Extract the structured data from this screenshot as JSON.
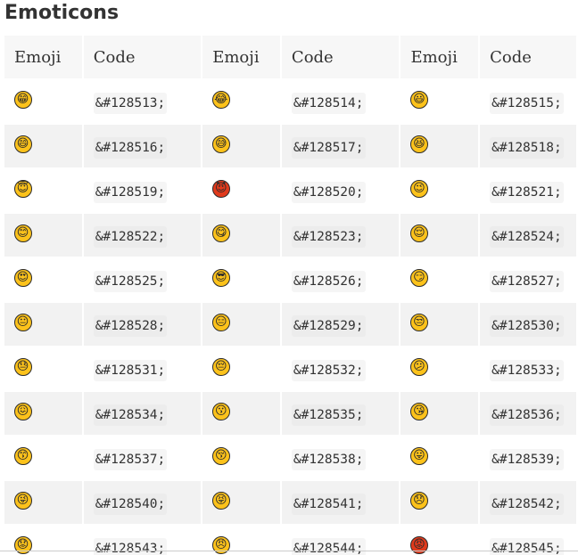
{
  "title": "Emoticons",
  "headers": [
    "Emoji",
    "Code",
    "Emoji",
    "Code",
    "Emoji",
    "Code"
  ],
  "colors": {
    "emoji_yellow": "#fcc21b",
    "emoji_red": "#e03a1c"
  },
  "rows": [
    [
      {
        "e": "😁",
        "c": "&#128513;"
      },
      {
        "e": "😂",
        "c": "&#128514;"
      },
      {
        "e": "😃",
        "c": "&#128515;"
      }
    ],
    [
      {
        "e": "😄",
        "c": "&#128516;"
      },
      {
        "e": "😅",
        "c": "&#128517;"
      },
      {
        "e": "😆",
        "c": "&#128518;"
      }
    ],
    [
      {
        "e": "😇",
        "c": "&#128519;"
      },
      {
        "e": "😈",
        "c": "&#128520;",
        "red": true
      },
      {
        "e": "😉",
        "c": "&#128521;"
      }
    ],
    [
      {
        "e": "😊",
        "c": "&#128522;"
      },
      {
        "e": "😋",
        "c": "&#128523;"
      },
      {
        "e": "😌",
        "c": "&#128524;"
      }
    ],
    [
      {
        "e": "😍",
        "c": "&#128525;"
      },
      {
        "e": "😎",
        "c": "&#128526;"
      },
      {
        "e": "😏",
        "c": "&#128527;"
      }
    ],
    [
      {
        "e": "😐",
        "c": "&#128528;"
      },
      {
        "e": "😑",
        "c": "&#128529;"
      },
      {
        "e": "😒",
        "c": "&#128530;"
      }
    ],
    [
      {
        "e": "😓",
        "c": "&#128531;"
      },
      {
        "e": "😔",
        "c": "&#128532;"
      },
      {
        "e": "😕",
        "c": "&#128533;"
      }
    ],
    [
      {
        "e": "😖",
        "c": "&#128534;"
      },
      {
        "e": "😗",
        "c": "&#128535;"
      },
      {
        "e": "😘",
        "c": "&#128536;"
      }
    ],
    [
      {
        "e": "😙",
        "c": "&#128537;"
      },
      {
        "e": "😚",
        "c": "&#128538;"
      },
      {
        "e": "😛",
        "c": "&#128539;"
      }
    ],
    [
      {
        "e": "😜",
        "c": "&#128540;"
      },
      {
        "e": "😝",
        "c": "&#128541;"
      },
      {
        "e": "😞",
        "c": "&#128542;"
      }
    ],
    [
      {
        "e": "😟",
        "c": "&#128543;"
      },
      {
        "e": "😠",
        "c": "&#128544;"
      },
      {
        "e": "😡",
        "c": "&#128545;",
        "red": true
      }
    ]
  ]
}
